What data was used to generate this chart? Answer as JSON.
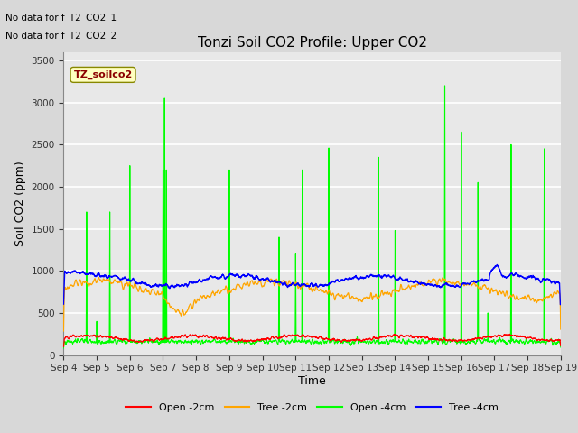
{
  "title": "Tonzi Soil CO2 Profile: Upper CO2",
  "ylabel": "Soil CO2 (ppm)",
  "xlabel": "Time",
  "ylim": [
    0,
    3600
  ],
  "xtick_labels": [
    "Sep 4",
    "Sep 5",
    "Sep 6",
    "Sep 7",
    "Sep 8",
    "Sep 9",
    "Sep 10",
    "Sep 11",
    "Sep 12",
    "Sep 13",
    "Sep 14",
    "Sep 15",
    "Sep 16",
    "Sep 17",
    "Sep 18",
    "Sep 19"
  ],
  "colors": {
    "open_2cm": "#FF0000",
    "tree_2cm": "#FFA500",
    "open_4cm": "#00FF00",
    "tree_4cm": "#0000FF"
  },
  "legend_labels": [
    "Open -2cm",
    "Tree -2cm",
    "Open -4cm",
    "Tree -4cm"
  ],
  "annotation_lines": [
    "No data for f_T2_CO2_1",
    "No data for f_T2_CO2_2"
  ],
  "inset_label": "TZ_soilco2",
  "background_color": "#D8D8D8",
  "plot_bg": "#E8E8E8",
  "grid_color": "#FFFFFF",
  "n_points": 3000,
  "seed": 42
}
